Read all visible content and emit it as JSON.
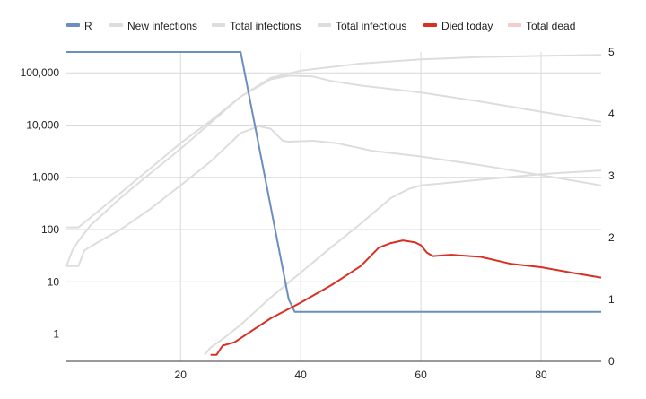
{
  "chart_data": {
    "type": "line",
    "title": "",
    "xlabel": "",
    "ylabel_left": "",
    "ylabel_right": "",
    "grid": true,
    "legend_position": "top-left",
    "x_axis": {
      "range": [
        1,
        90
      ],
      "ticks": [
        20,
        40,
        60,
        80
      ]
    },
    "y_left": {
      "scale": "log",
      "range": [
        0.3,
        250000
      ],
      "ticks": [
        1,
        10,
        100,
        1000,
        10000,
        100000
      ],
      "tick_labels": [
        "1",
        "10",
        "100",
        "1,000",
        "10,000",
        "100,000"
      ]
    },
    "y_right": {
      "scale": "linear",
      "range": [
        0,
        5
      ],
      "ticks": [
        0,
        1,
        2,
        3,
        4,
        5
      ],
      "tick_labels": [
        "0",
        "1",
        "2",
        "3",
        "4",
        "5"
      ]
    },
    "series": [
      {
        "name": "R",
        "axis": "right",
        "color": "#6c8ebf",
        "points": [
          [
            1,
            5.0
          ],
          [
            30,
            5.0
          ],
          [
            38,
            1.0
          ],
          [
            39,
            0.8
          ],
          [
            90,
            0.8
          ]
        ]
      },
      {
        "name": "New infections",
        "axis": "left",
        "color": "#dddddd",
        "points": [
          [
            1,
            20
          ],
          [
            3,
            20
          ],
          [
            4,
            40
          ],
          [
            6,
            55
          ],
          [
            10,
            100
          ],
          [
            15,
            250
          ],
          [
            20,
            700
          ],
          [
            25,
            2000
          ],
          [
            30,
            7000
          ],
          [
            33,
            9500
          ],
          [
            35,
            8500
          ],
          [
            37,
            5000
          ],
          [
            38,
            4800
          ],
          [
            42,
            5000
          ],
          [
            46,
            4500
          ],
          [
            52,
            3200
          ],
          [
            60,
            2500
          ],
          [
            70,
            1700
          ],
          [
            80,
            1100
          ],
          [
            90,
            700
          ]
        ]
      },
      {
        "name": "Total infections",
        "axis": "left",
        "color": "#dddddd",
        "points": [
          [
            1,
            20
          ],
          [
            2,
            40
          ],
          [
            3,
            60
          ],
          [
            5,
            120
          ],
          [
            10,
            400
          ],
          [
            15,
            1200
          ],
          [
            20,
            3500
          ],
          [
            25,
            11000
          ],
          [
            30,
            35000
          ],
          [
            35,
            80000
          ],
          [
            40,
            110000
          ],
          [
            50,
            150000
          ],
          [
            60,
            180000
          ],
          [
            70,
            200000
          ],
          [
            80,
            210000
          ],
          [
            90,
            220000
          ]
        ]
      },
      {
        "name": "Total infectious",
        "axis": "left",
        "color": "#dddddd",
        "points": [
          [
            1,
            110
          ],
          [
            3,
            110
          ],
          [
            5,
            170
          ],
          [
            10,
            500
          ],
          [
            15,
            1500
          ],
          [
            20,
            4500
          ],
          [
            25,
            12000
          ],
          [
            30,
            35000
          ],
          [
            35,
            75000
          ],
          [
            38,
            88000
          ],
          [
            42,
            85000
          ],
          [
            45,
            70000
          ],
          [
            50,
            57000
          ],
          [
            60,
            42000
          ],
          [
            70,
            28000
          ],
          [
            80,
            18000
          ],
          [
            90,
            11500
          ]
        ]
      },
      {
        "name": "Died today",
        "axis": "left",
        "color": "#d93025",
        "points": [
          [
            25,
            0.4
          ],
          [
            26,
            0.4
          ],
          [
            27,
            0.6
          ],
          [
            29,
            0.7
          ],
          [
            35,
            2.0
          ],
          [
            40,
            4.0
          ],
          [
            45,
            8.5
          ],
          [
            50,
            20
          ],
          [
            53,
            45
          ],
          [
            55,
            55
          ],
          [
            57,
            62
          ],
          [
            59,
            57
          ],
          [
            60,
            50
          ],
          [
            61,
            36
          ],
          [
            62,
            31
          ],
          [
            65,
            33
          ],
          [
            70,
            30
          ],
          [
            75,
            22
          ],
          [
            80,
            19
          ],
          [
            85,
            15
          ],
          [
            90,
            12
          ]
        ]
      },
      {
        "name": "Total dead",
        "axis": "left",
        "color": "#f4cccc",
        "legend_only": true
      },
      {
        "name": "_total_dead_curve",
        "axis": "left",
        "color": "#dddddd",
        "points": [
          [
            24,
            0.4
          ],
          [
            25,
            0.55
          ],
          [
            27,
            0.8
          ],
          [
            30,
            1.5
          ],
          [
            35,
            5
          ],
          [
            40,
            15
          ],
          [
            45,
            45
          ],
          [
            50,
            130
          ],
          [
            55,
            400
          ],
          [
            58,
            600
          ],
          [
            60,
            700
          ],
          [
            70,
            900
          ],
          [
            80,
            1150
          ],
          [
            90,
            1350
          ]
        ]
      }
    ]
  }
}
